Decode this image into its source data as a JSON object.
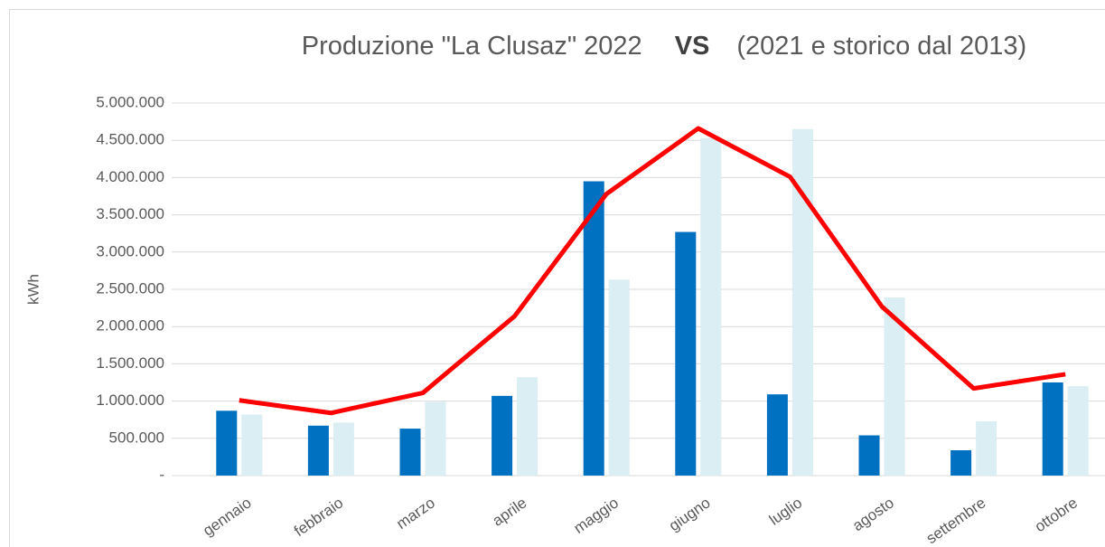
{
  "chart_data": {
    "type": "bar",
    "title": [
      "Produzione \"La Clusaz\" 2022",
      "VS",
      "(2021 e storico dal 2013)"
    ],
    "y_label": "kWh",
    "categories": [
      "gennaio",
      "febbraio",
      "marzo",
      "aprile",
      "maggio",
      "giugno",
      "luglio",
      "agosto",
      "settembre",
      "ottobre"
    ],
    "series": [
      {
        "type": "bar",
        "color": "#0070c0",
        "values": [
          870000,
          670000,
          630000,
          1070000,
          3950000,
          3270000,
          1090000,
          540000,
          340000,
          1250000
        ]
      },
      {
        "type": "bar",
        "color": "#daeef3",
        "values": [
          820000,
          710000,
          990000,
          1320000,
          2630000,
          4530000,
          4650000,
          2390000,
          730000,
          1200000
        ]
      },
      {
        "type": "line",
        "color": "#ff0000",
        "values": [
          1010000,
          840000,
          1110000,
          2140000,
          3780000,
          4660000,
          4010000,
          2270000,
          1170000,
          1360000
        ]
      }
    ],
    "ylim": [
      0,
      5000000
    ],
    "yticks": [
      {
        "value": 0,
        "label": "-"
      },
      {
        "value": 500000,
        "label": "500.000"
      },
      {
        "value": 1000000,
        "label": "1.000.000"
      },
      {
        "value": 1500000,
        "label": "1.500.000"
      },
      {
        "value": 2000000,
        "label": "2.000.000"
      },
      {
        "value": 2500000,
        "label": "2.500.000"
      },
      {
        "value": 3000000,
        "label": "3.000.000"
      },
      {
        "value": 3500000,
        "label": "3.500.000"
      },
      {
        "value": 4000000,
        "label": "4.000.000"
      },
      {
        "value": 4500000,
        "label": "4.500.000"
      },
      {
        "value": 5000000,
        "label": "5.000.000"
      }
    ],
    "grid": true
  }
}
